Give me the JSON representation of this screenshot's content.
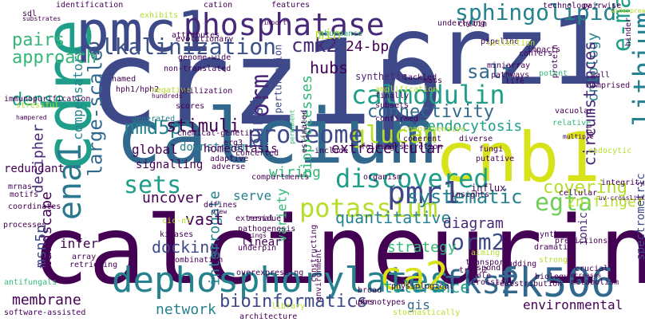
{
  "background": "#ffffff",
  "palette": {
    "dark_purple": "#440154",
    "purple": "#482878",
    "indigo": "#3e4989",
    "blue": "#31688e",
    "teal": "#26828e",
    "green_teal": "#1f9e89",
    "green": "#35b779",
    "lime": "#6ece58",
    "yellow_green": "#b5de2b",
    "yellow": "#fde725"
  },
  "words": [
    {
      "text": "calcineurin",
      "color": "#440154"
    },
    {
      "text": "crz1p",
      "color": "#3e4989"
    },
    {
      "text": "calcium",
      "color": "#31688e"
    },
    {
      "text": "crz1",
      "color": "#3e4989"
    },
    {
      "text": "cnb1",
      "color": "#d8e219"
    },
    {
      "text": "cdre",
      "color": "#1f9e89"
    },
    {
      "text": "pmc1",
      "color": "#3e4989"
    },
    {
      "text": "phosphatase",
      "color": "#482878"
    },
    {
      "text": "dephosphorylates",
      "color": "#26828e"
    },
    {
      "text": "calmodulin",
      "color": "#1f9e89"
    },
    {
      "text": "alkalinization",
      "color": "#3b528b"
    },
    {
      "text": "sphingolipid",
      "color": "#26828e"
    },
    {
      "text": "discovered",
      "color": "#1f9e89"
    },
    {
      "text": "potassium",
      "color": "#b5de2b"
    },
    {
      "text": "pmr1",
      "color": "#3e4989"
    },
    {
      "text": "fk506",
      "color": "#31688e"
    },
    {
      "text": "fks2",
      "color": "#31688e"
    },
    {
      "text": "ca2",
      "color": "#d8e219"
    },
    {
      "text": "glucan",
      "color": "#b5de2b"
    },
    {
      "text": "lithium",
      "color": "#26828e"
    },
    {
      "text": "proteome",
      "color": "#3e4989"
    },
    {
      "text": "connectivity",
      "color": "#31688e"
    },
    {
      "text": "ena1",
      "color": "#2a788e"
    },
    {
      "text": "egta",
      "color": "#6ece58"
    },
    {
      "text": "e-map",
      "color": "#1f9e89"
    },
    {
      "text": "large-scale",
      "color": "#31688e"
    },
    {
      "text": "nmd5p",
      "color": "#26828e"
    },
    {
      "text": "cmk2",
      "color": "#482878"
    },
    {
      "text": "orm",
      "color": "#482878"
    },
    {
      "text": "stimuli",
      "color": "#440154"
    },
    {
      "text": "sets",
      "color": "#1f9e89"
    },
    {
      "text": "dense",
      "color": "#1f9e89"
    },
    {
      "text": "pairs",
      "color": "#35b779"
    },
    {
      "text": "approach",
      "color": "#35b779"
    },
    {
      "text": "24-bp",
      "color": "#440154"
    },
    {
      "text": "hubs",
      "color": "#440154"
    },
    {
      "text": "salt",
      "color": "#31688e"
    },
    {
      "text": "ontology",
      "color": "#26828e"
    },
    {
      "text": "burst",
      "color": "#3e4989"
    },
    {
      "text": "circumstances",
      "color": "#482878"
    },
    {
      "text": "global",
      "color": "#440154"
    },
    {
      "text": "compensatory",
      "color": "#26828e"
    },
    {
      "text": "decipher",
      "color": "#482878"
    },
    {
      "text": "bioprocesses",
      "color": "#35b779"
    },
    {
      "text": "endocytosis",
      "color": "#1f9e89"
    },
    {
      "text": "extracellular",
      "color": "#440154"
    },
    {
      "text": "uncover",
      "color": "#440154"
    },
    {
      "text": "wiring",
      "color": "#35b779"
    },
    {
      "text": "covering",
      "color": "#b5de2b"
    },
    {
      "text": "systematic",
      "color": "#26828e"
    },
    {
      "text": "zn-finger",
      "color": "#b5de2b"
    },
    {
      "text": "quantitative",
      "color": "#26828e"
    },
    {
      "text": "diagram",
      "color": "#482878"
    },
    {
      "text": "orm2",
      "color": "#3e4989"
    },
    {
      "text": "docking",
      "color": "#3e4989"
    },
    {
      "text": "interrogate",
      "color": "#26828e"
    },
    {
      "text": "vast",
      "color": "#440154"
    },
    {
      "text": "variety",
      "color": "#35b779"
    },
    {
      "text": "strategy",
      "color": "#35b779"
    },
    {
      "text": "tolerance",
      "color": "#1f9e89"
    },
    {
      "text": "membrane",
      "color": "#440154"
    },
    {
      "text": "network",
      "color": "#26828e"
    },
    {
      "text": "bioinformatics",
      "color": "#3e4989"
    },
    {
      "text": "gis",
      "color": "#31688e"
    },
    {
      "text": "environmental",
      "color": "#440154"
    },
    {
      "text": "landscape",
      "color": "#440154"
    },
    {
      "text": "infer",
      "color": "#440154"
    },
    {
      "text": "serve",
      "color": "#26828e"
    },
    {
      "text": "msn5p",
      "color": "#3e4989"
    },
    {
      "text": "redundant",
      "color": "#440154"
    },
    {
      "text": "signalling",
      "color": "#440154"
    },
    {
      "text": "downstream",
      "color": "#26828e"
    },
    {
      "text": "homeostasis",
      "color": "#440154"
    },
    {
      "text": "linear",
      "color": "#440154"
    },
    {
      "text": "min",
      "color": "#b5de2b"
    },
    {
      "text": "spectrometric",
      "color": "#3e4989"
    },
    {
      "text": "ionic",
      "color": "#482878"
    },
    {
      "text": "influx",
      "color": "#440154"
    },
    {
      "text": "perturbation",
      "color": "#3e4989"
    },
    {
      "text": "synthetic",
      "color": "#482878"
    },
    {
      "text": "evolutionary",
      "color": "#440154"
    },
    {
      "text": "attributes",
      "color": "#440154"
    },
    {
      "text": "abundance",
      "color": "#35b779"
    },
    {
      "text": "identification",
      "color": "#440154"
    },
    {
      "text": "cation",
      "color": "#440154"
    },
    {
      "text": "features",
      "color": "#440154"
    },
    {
      "text": "technology",
      "color": "#440154"
    },
    {
      "text": "pairwise",
      "color": "#440154"
    },
    {
      "text": "hinder",
      "color": "#440154"
    },
    {
      "text": "underlying",
      "color": "#440154"
    },
    {
      "text": "chitin",
      "color": "#440154"
    },
    {
      "text": "pipeline",
      "color": "#440154"
    },
    {
      "text": "collection",
      "color": "#b5de2b"
    },
    {
      "text": "impacts",
      "color": "#440154"
    },
    {
      "text": "confers",
      "color": "#440154"
    },
    {
      "text": "protein",
      "color": "#440154"
    },
    {
      "text": "miniarray",
      "color": "#440154"
    },
    {
      "text": "pathways",
      "color": "#440154"
    },
    {
      "text": "tackled",
      "color": "#440154"
    },
    {
      "text": "mass",
      "color": "#440154"
    },
    {
      "text": "life",
      "color": "#440154"
    },
    {
      "text": "potent",
      "color": "#35b779"
    },
    {
      "text": "comprised",
      "color": "#440154"
    },
    {
      "text": "wall",
      "color": "#440154"
    },
    {
      "text": "sdl",
      "color": "#440154"
    },
    {
      "text": "substrates",
      "color": "#440154"
    },
    {
      "text": "exhibits",
      "color": "#b5de2b"
    },
    {
      "text": "import",
      "color": "#440154"
    },
    {
      "text": "genome-wide",
      "color": "#440154"
    },
    {
      "text": "non-translated",
      "color": "#440154"
    },
    {
      "text": "named",
      "color": "#440154"
    },
    {
      "text": "hph1/hph2",
      "color": "#440154"
    },
    {
      "text": "hundreds",
      "color": "#440154"
    },
    {
      "text": "negative",
      "color": "#b5de2b"
    },
    {
      "text": "utilization",
      "color": "#440154"
    },
    {
      "text": "scores",
      "color": "#440154"
    },
    {
      "text": "generated",
      "color": "#26828e"
    },
    {
      "text": "immunopurification",
      "color": "#440154"
    },
    {
      "text": "stressful",
      "color": "#b5de2b"
    },
    {
      "text": "hampered",
      "color": "#440154"
    },
    {
      "text": "chemical-genetic",
      "color": "#440154"
    },
    {
      "text": "permanent",
      "color": "#35b779"
    },
    {
      "text": "estimated",
      "color": "#440154"
    },
    {
      "text": "amplification",
      "color": "#b5de2b"
    },
    {
      "text": "finally",
      "color": "#440154"
    },
    {
      "text": "subsets",
      "color": "#440154"
    },
    {
      "text": "confirmed",
      "color": "#440154"
    },
    {
      "text": "comprehensive",
      "color": "#b5de2b"
    },
    {
      "text": "coherent",
      "color": "#440154"
    },
    {
      "text": "diverse",
      "color": "#440154"
    },
    {
      "text": "vacuolar",
      "color": "#440154"
    },
    {
      "text": "relative",
      "color": "#35b779"
    },
    {
      "text": "multiple",
      "color": "#440154"
    },
    {
      "text": "spt",
      "color": "#440154"
    },
    {
      "text": "widespread",
      "color": "#b5de2b"
    },
    {
      "text": "endocytic",
      "color": "#b5de2b"
    },
    {
      "text": "fungi",
      "color": "#440154"
    },
    {
      "text": "putative",
      "color": "#440154"
    },
    {
      "text": "include",
      "color": "#440154"
    },
    {
      "text": "erg3",
      "color": "#440154"
    },
    {
      "text": "concerted",
      "color": "#440154"
    },
    {
      "text": "adaptive",
      "color": "#440154"
    },
    {
      "text": "adverse",
      "color": "#440154"
    },
    {
      "text": "compartments",
      "color": "#440154"
    },
    {
      "text": "organism",
      "color": "#440154"
    },
    {
      "text": "folding/secretion",
      "color": "#440154"
    },
    {
      "text": "insights",
      "color": "#440154"
    },
    {
      "text": "cellular",
      "color": "#440154"
    },
    {
      "text": "uv-crosslinking",
      "color": "#440154"
    },
    {
      "text": "integrity",
      "color": "#440154"
    },
    {
      "text": "mrnas",
      "color": "#440154"
    },
    {
      "text": "motifs",
      "color": "#440154"
    },
    {
      "text": "coordinates",
      "color": "#440154"
    },
    {
      "text": "processes",
      "color": "#440154"
    },
    {
      "text": "cic-nt",
      "color": "#b5de2b"
    },
    {
      "text": "defines",
      "color": "#440154"
    },
    {
      "text": "view",
      "color": "#440154"
    },
    {
      "text": "external",
      "color": "#440154"
    },
    {
      "text": "residue",
      "color": "#440154"
    },
    {
      "text": "pathogenesis",
      "color": "#440154"
    },
    {
      "text": "brings",
      "color": "#440154"
    },
    {
      "text": "kinases",
      "color": "#440154"
    },
    {
      "text": "underpin",
      "color": "#440154"
    },
    {
      "text": "array",
      "color": "#440154"
    },
    {
      "text": "combination",
      "color": "#440154"
    },
    {
      "text": "retrieving",
      "color": "#440154"
    },
    {
      "text": "overexpressing",
      "color": "#440154"
    },
    {
      "text": "constructing",
      "color": "#440154"
    },
    {
      "text": "antifungals",
      "color": "#35b779"
    },
    {
      "text": "software-assisted",
      "color": "#440154"
    },
    {
      "text": "architecture",
      "color": "#440154"
    },
    {
      "text": "stochastically",
      "color": "#b5de2b"
    },
    {
      "text": "environment",
      "color": "#440154"
    },
    {
      "text": "library",
      "color": "#b5de2b"
    },
    {
      "text": "utrs",
      "color": "#440154"
    },
    {
      "text": "decreases",
      "color": "#440154"
    },
    {
      "text": "redistribution",
      "color": "#440154"
    },
    {
      "text": "crosstalk",
      "color": "#440154"
    },
    {
      "text": "trk1,2",
      "color": "#440154"
    },
    {
      "text": "broad",
      "color": "#440154"
    },
    {
      "text": "physiological",
      "color": "#440154"
    },
    {
      "text": "phenotypes",
      "color": "#440154"
    },
    {
      "text": "transport",
      "color": "#440154"
    },
    {
      "text": "respond",
      "color": "#440154"
    },
    {
      "text": "azole",
      "color": "#440154"
    },
    {
      "text": "budding",
      "color": "#440154"
    },
    {
      "text": "strong",
      "color": "#b5de2b"
    },
    {
      "text": "crucial",
      "color": "#440154"
    },
    {
      "text": "metabolism",
      "color": "#440154"
    },
    {
      "text": "biology",
      "color": "#440154"
    },
    {
      "text": "dramatic",
      "color": "#440154"
    },
    {
      "text": "synthase",
      "color": "#440154"
    },
    {
      "text": "predictions",
      "color": "#440154"
    },
    {
      "text": "aiming",
      "color": "#b5de2b"
    },
    {
      "text": "aggregates",
      "color": "#b5de2b"
    }
  ]
}
